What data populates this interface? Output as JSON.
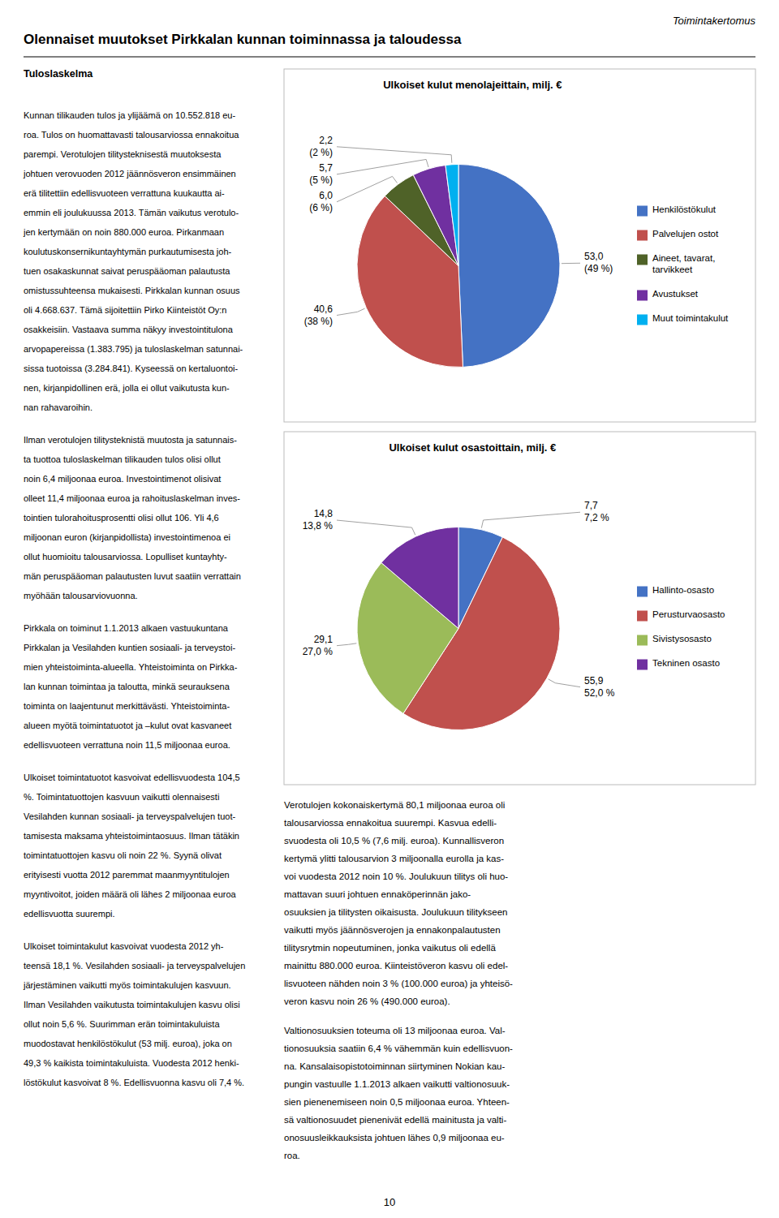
{
  "page_title": "Toimintakertomus",
  "title": "Olennaiset muutokset Pirkkalan kunnan toiminnassa ja taloudessa",
  "page_number": "10",
  "left_heading": "Tuloslaskelma",
  "left_paragraphs": [
    [
      "Kunnan tilikauden tulos ja ylijäämä on 10.552.818 eu-",
      "roa. Tulos on huomattavasti talousarviossa ennakoitua",
      "parempi. Verotulojen tilitysteknisestä muutoksesta",
      "johtuen verovuoden 2012 jäännösveron ensimmäinen",
      "erä tilitettiin edellisvuoteen verrattuna kuukautta ai-",
      "emmin eli joulukuussa 2013. Tämän vaikutus verotulo-",
      "jen kertymään on noin 880.000 euroa. Pirkanmaan",
      "koulutuskonsernikuntayhtymän purkautumisesta joh-",
      "tuen osakaskunnat saivat peruspääoman palautusta",
      "omistussuhteensa mukaisesti. Pirkkalan kunnan osuus",
      "oli 4.668.637. Tämä sijoitettiin Pirko Kiinteistöt Oy:n",
      "osakkeisiin. Vastaava summa näkyy investointitulona",
      "arvopapereissa (1.383.795) ja tuloslaskelman satunnai-",
      "sissa tuotoissa (3.284.841). Kyseessä on kertaluontoi-",
      "nen, kirjanpidollinen erä, jolla ei ollut vaikutusta kun-",
      "nan rahavaroihin."
    ],
    [
      "Ilman verotulojen tilitysteknistä muutosta ja satunnais-",
      "ta tuottoa tuloslaskelman tilikauden tulos olisi ollut",
      "noin 6,4 miljoonaa euroa. Investointimenot olisivat",
      "olleet 11,4 miljoonaa euroa ja rahoituslaskelman inves-",
      "tointien tulorahoitusprosentti olisi ollut 106. Yli 4,6",
      "miljoonan euron (kirjanpidollista) investointimenoa ei",
      "ollut huomioitu talousarviossa. Lopulliset kuntayhty-",
      "män peruspääoman palautusten luvut saatiin verrattain",
      "myöhään talousarviovuonna."
    ],
    [
      "Pirkkala on toiminut 1.1.2013 alkaen vastuukuntana",
      "Pirkkalan ja Vesilahden kuntien sosiaali- ja terveystoi-",
      "mien yhteistoiminta-alueella. Yhteistoiminta on Pirkka-",
      "lan kunnan toimintaa ja taloutta, minkä seurauksena",
      "toiminta on laajentunut merkittävästi. Yhteistoiminta-",
      "alueen myötä toimintatuotot ja –kulut ovat kasvaneet",
      "edellisvuoteen verrattuna noin 11,5 miljoonaa euroa."
    ],
    [
      "Ulkoiset toimintatuotot kasvoivat edellisvuodesta 104,5",
      "%. Toimintatuottojen kasvuun vaikutti olennaisesti",
      "Vesilahden kunnan sosiaali- ja terveyspalvelujen tuot-",
      "tamisesta maksama yhteistoimintaosuus. Ilman tätäkin",
      "toimintatuottojen kasvu oli noin 22 %. Syynä olivat",
      "erityisesti vuotta 2012 paremmat maanmyyntitulojen",
      "myyntivoitot, joiden määrä oli lähes 2 miljoonaa euroa",
      "edellisvuotta suurempi."
    ],
    [
      "Ulkoiset toimintakulut kasvoivat vuodesta 2012 yh-",
      "teensä 18,1 %. Vesilahden sosiaali- ja terveyspalvelujen",
      "järjestäminen vaikutti myös toimintakulujen kasvuun.",
      "Ilman Vesilahden vaikutusta toimintakulujen kasvu olisi",
      "ollut noin 5,6 %. Suurimman erän toimintakuluista",
      "muodostavat henkilöstökulut (53 milj. euroa), joka on",
      "49,3 % kaikista toimintakuluista. Vuodesta 2012 henki-",
      "löstökulut kasvoivat 8 %. Edellisvuonna kasvu oli 7,4 %."
    ]
  ],
  "right_paragraphs": [
    [
      "Verotulojen kokonaiskertymä 80,1 miljoonaa euroa oli",
      "talousarviossa ennakoitua suurempi. Kasvua edelli-",
      "svuodesta oli 10,5 % (7,6 milj. euroa). Kunnallisveron",
      "kertymä ylitti talousarvion 3 miljoonalla eurolla ja kas-",
      "voi vuodesta 2012 noin 10 %. Joulukuun tilitys oli huo-",
      "mattavan suuri johtuen ennaköperinnän jako-",
      "osuuksien ja tilitysten oikaisusta. Joulukuun tilitykseen",
      "vaikutti myös jäännösverojen ja ennakonpalautusten",
      "tilitysrytmin nopeutuminen, jonka vaikutus oli edellä",
      "mainittu 880.000 euroa. Kiinteistöveron kasvu oli edel-",
      "lisvuoteen nähden noin 3 % (100.000 euroa) ja yhteisö-",
      "veron kasvu noin 26 % (490.000 euroa)."
    ],
    [
      "Valtionosuuksien toteuma oli 13 miljoonaa euroa. Val-",
      "tionosuuksia saatiin 6,4 % vähemmän kuin edellisvuon-",
      "na. Kansalaisopistotoiminnan siirtyminen Nokian kau-",
      "pungin vastuulle 1.1.2013 alkaen vaikutti valtionosuuk-",
      "sien pienenemiseen noin 0,5 miljoonaa euroa. Yhteen-",
      "sä valtionosuudet pienenivät edellä mainitusta ja valti-",
      "onosuusleikkauksista johtuen lähes 0,9 miljoonaa eu-",
      "roa."
    ]
  ],
  "chart_data": [
    {
      "type": "pie",
      "title": "Ulkoiset kulut menolajeittain, milj. €",
      "categories": [
        "Henkilöstökulut",
        "Palvelujen ostot",
        "Aineet, tavarat,\ntarvikkeet",
        "Avustukset",
        "Muut toimintakulut"
      ],
      "values": [
        53.0,
        40.6,
        6.0,
        5.7,
        2.2
      ],
      "value_labels": [
        "53,0",
        "40,6",
        "6,0",
        "5,7",
        "2,2"
      ],
      "shares": [
        49,
        38,
        6,
        5,
        2
      ],
      "share_labels": [
        "(49 %)",
        "(38 %)",
        "(6 %)",
        "(5 %)",
        "(2 %)"
      ],
      "colors": [
        "#4472C4",
        "#C0504D",
        "#4F6228",
        "#7030A0",
        "#00B0F0"
      ],
      "data_labels": true,
      "legend": "right"
    },
    {
      "type": "pie",
      "title": "Ulkoiset kulut osastoittain, milj. €",
      "categories": [
        "Hallinto-osasto",
        "Perusturvaosasto",
        "Sivistysosasto",
        "Tekninen osasto"
      ],
      "values": [
        7.7,
        55.9,
        29.1,
        14.8
      ],
      "value_labels": [
        "7,7",
        "55,9",
        "29,1",
        "14,8"
      ],
      "shares": [
        7.2,
        52.0,
        27.0,
        13.8
      ],
      "share_labels": [
        "7,2 %",
        "52,0 %",
        "27,0 %",
        "13,8 %"
      ],
      "colors": [
        "#4472C4",
        "#C0504D",
        "#9BBB59",
        "#7030A0"
      ],
      "data_labels": true,
      "legend": "right"
    }
  ]
}
